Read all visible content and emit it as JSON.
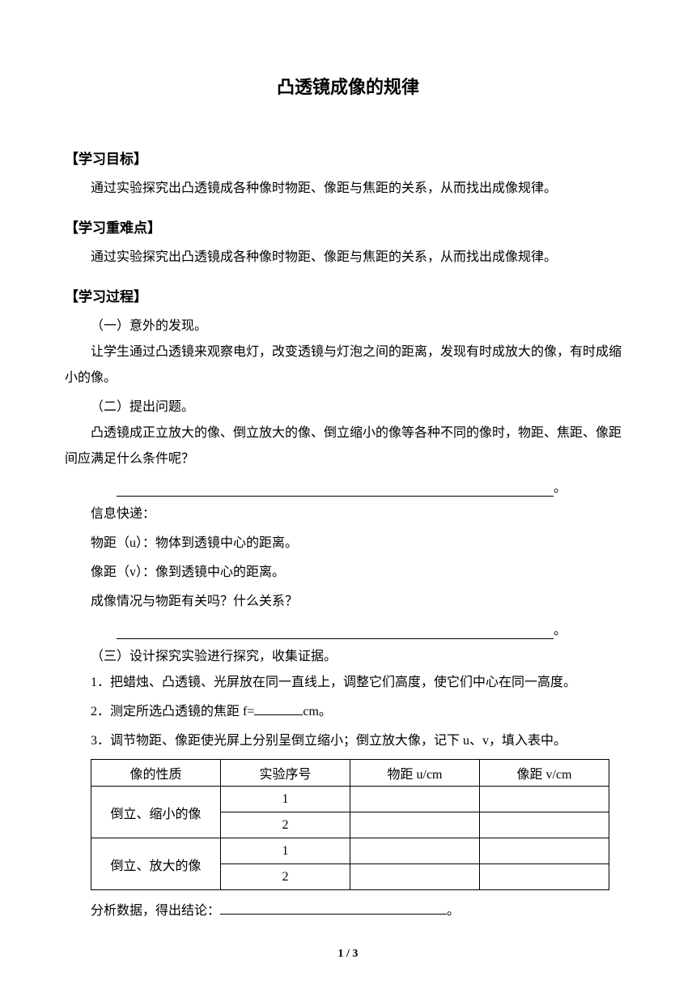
{
  "title": "凸透镜成像的规律",
  "sections": {
    "goals": {
      "header": "【学习目标】",
      "text": "通过实验探究出凸透镜成各种像时物距、像距与焦距的关系，从而找出成像规律。"
    },
    "difficulties": {
      "header": "【学习重难点】",
      "text": "通过实验探究出凸透镜成各种像时物距、像距与焦距的关系，从而找出成像规律。"
    },
    "process": {
      "header": "【学习过程】",
      "part1": {
        "label": "（一）意外的发现。",
        "text": "让学生通过凸透镜来观察电灯，改变透镜与灯泡之间的距离，发现有时成放大的像，有时成缩小的像。"
      },
      "part2": {
        "label": "（二）提出问题。",
        "text": "凸透镜成正立放大的像、倒立放大的像、倒立缩小的像等各种不同的像时，物距、焦距、像距间应满足什么条件呢？",
        "info_title": "信息快递：",
        "info_u": "物距（u）：物体到透镜中心的距离。",
        "info_v": "像距（v）：像到透镜中心的距离。",
        "info_question": "成像情况与物距有关吗？什么关系？"
      },
      "part3": {
        "label": "（三）设计探究实验进行探究，收集证据。",
        "item1": "1．把蜡烛、凸透镜、光屏放在同一直线上，调整它们高度，使它们中心在同一高度。",
        "item2_pre": "2．测定所选凸透镜的焦距 f=",
        "item2_post": "cm。",
        "item3": "3．调节物距、像距使光屏上分别呈倒立缩小；倒立放大像，记下 u、v，填入表中。",
        "conclusion_pre": "分析数据，得出结论：",
        "conclusion_post": "。"
      }
    }
  },
  "table": {
    "headers": [
      "像的性质",
      "实验序号",
      "物距 u/cm",
      "像距 v/cm"
    ],
    "rows": [
      {
        "property": "倒立、缩小的像",
        "num": "1"
      },
      {
        "property_rowspan": true,
        "num": "2"
      },
      {
        "property": "倒立、放大的像",
        "num": "1"
      },
      {
        "property_rowspan": true,
        "num": "2"
      }
    ]
  },
  "footer": "1 / 3"
}
